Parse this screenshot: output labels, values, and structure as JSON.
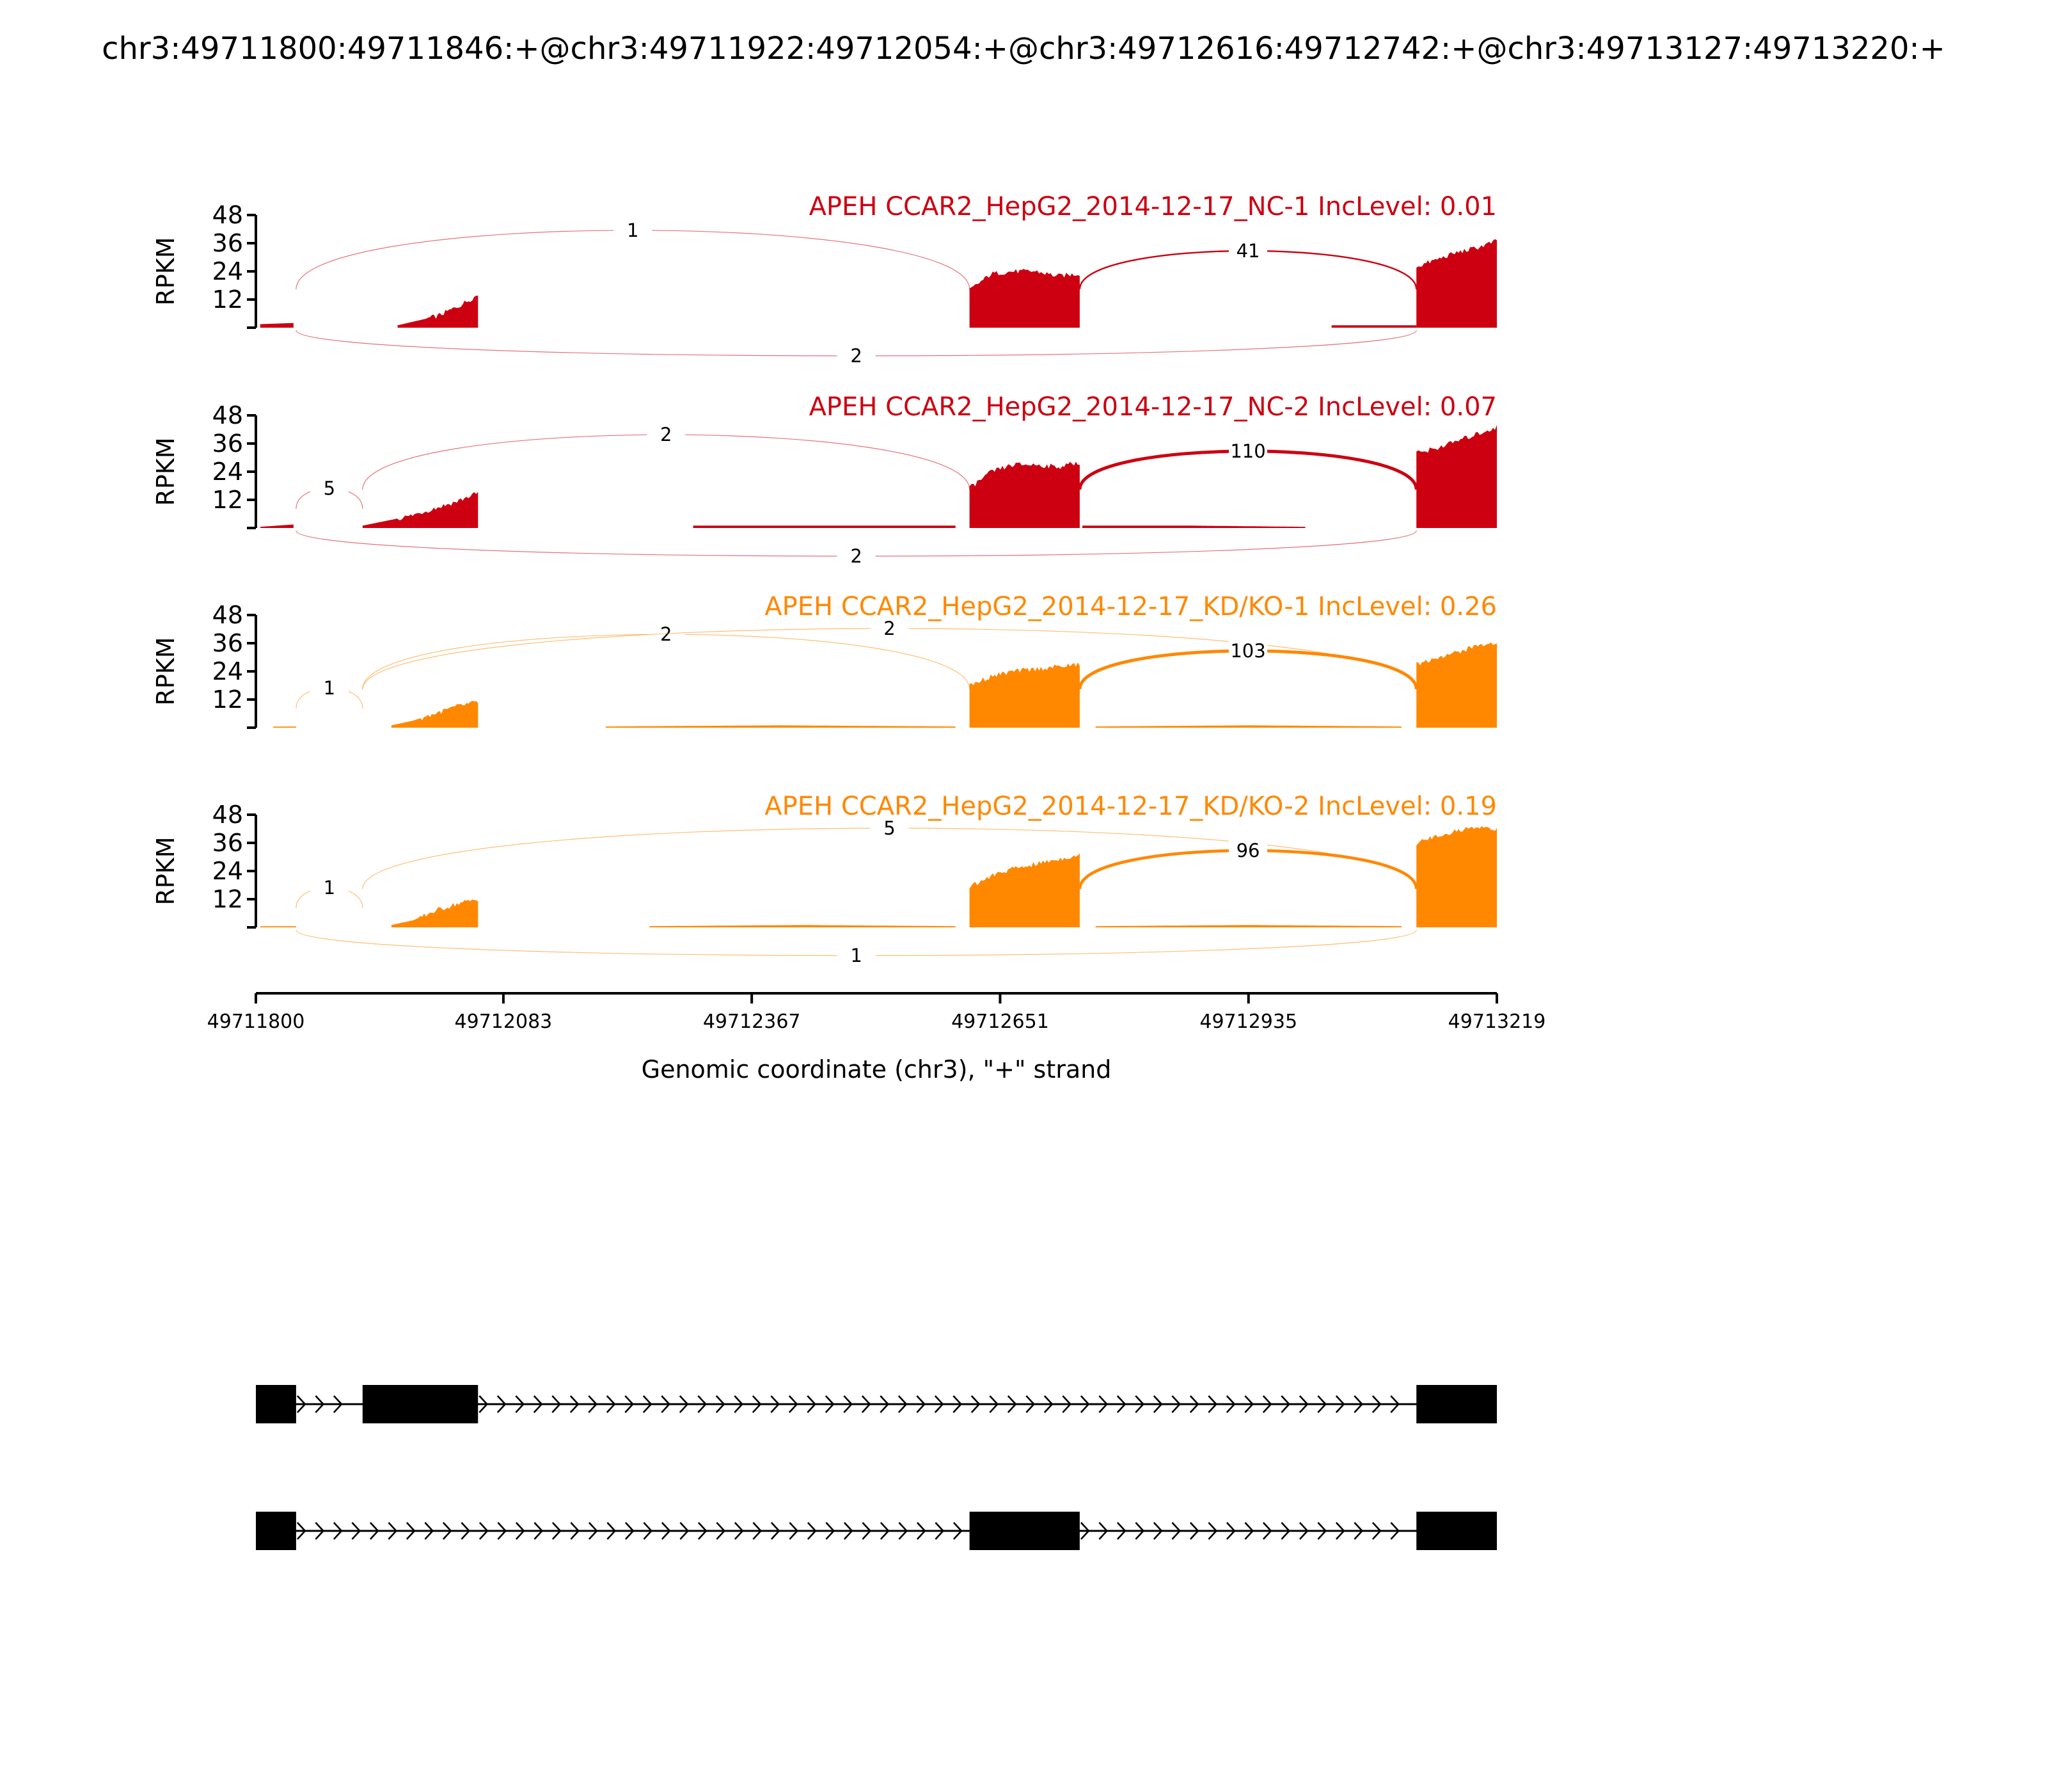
{
  "chart_data": {
    "type": "sashimi",
    "title": "chr3:49711800:49711846:+@chr3:49711922:49712054:+@chr3:49712616:49712742:+@chr3:49713127:49713220:+",
    "xlabel": "Genomic coordinate (chr3), \"+\" strand",
    "ylabel": "RPKM",
    "xlim": [
      49711800,
      49713219
    ],
    "x_ticks": [
      49711800,
      49712083,
      49712367,
      49712651,
      49712935,
      49713219
    ],
    "ylim": [
      0,
      48
    ],
    "y_ticks": [
      12,
      24,
      36,
      48
    ],
    "samples": [
      {
        "label": "APEH CCAR2_HepG2_2014-12-17_NC-1 IncLevel: 0.01",
        "color": "#cc0011",
        "coverage": [
          {
            "start": 49711805,
            "end": 49711843,
            "values": [
              1.5,
              2
            ]
          },
          {
            "start": 49711962,
            "end": 49712054,
            "values": [
              1,
              3,
              5,
              9,
              14
            ]
          },
          {
            "start": 49712616,
            "end": 49712742,
            "values": [
              16,
              23,
              24,
              24,
              22,
              23
            ]
          },
          {
            "start": 49713030,
            "end": 49713127,
            "values": [
              1,
              1
            ]
          },
          {
            "start": 49713127,
            "end": 49713219,
            "values": [
              26,
              29,
              32,
              34,
              37
            ]
          }
        ],
        "junctions": [
          {
            "from": 49711846,
            "to": 49712616,
            "count": "1",
            "side": "above"
          },
          {
            "from": 49712742,
            "to": 49713127,
            "count": "41",
            "side": "above"
          },
          {
            "from": 49711846,
            "to": 49713127,
            "count": "2",
            "side": "below"
          }
        ]
      },
      {
        "label": "APEH CCAR2_HepG2_2014-12-17_NC-2 IncLevel: 0.07",
        "color": "#cc0011",
        "coverage": [
          {
            "start": 49711805,
            "end": 49711843,
            "values": [
              0.5,
              1.5
            ]
          },
          {
            "start": 49711922,
            "end": 49712054,
            "values": [
              1,
              3,
              5,
              8,
              11,
              15
            ]
          },
          {
            "start": 49712300,
            "end": 49712600,
            "values": [
              1,
              1,
              1
            ]
          },
          {
            "start": 49712616,
            "end": 49712742,
            "values": [
              17,
              24,
              27,
              27,
              26,
              28
            ]
          },
          {
            "start": 49712745,
            "end": 49713000,
            "values": [
              1,
              1,
              0.5
            ]
          },
          {
            "start": 49713127,
            "end": 49713219,
            "values": [
              32,
              34,
              37,
              40,
              43
            ]
          }
        ],
        "junctions": [
          {
            "from": 49711846,
            "to": 49711922,
            "count": "5",
            "side": "above"
          },
          {
            "from": 49711922,
            "to": 49712616,
            "count": "2",
            "side": "above"
          },
          {
            "from": 49712742,
            "to": 49713127,
            "count": "110",
            "side": "above"
          },
          {
            "from": 49711846,
            "to": 49713127,
            "count": "2",
            "side": "below"
          }
        ]
      },
      {
        "label": "APEH CCAR2_HepG2_2014-12-17_KD/KO-1 IncLevel: 0.26",
        "color": "#ff8800",
        "coverage": [
          {
            "start": 49711820,
            "end": 49711846,
            "values": [
              0.5,
              0.5
            ]
          },
          {
            "start": 49711955,
            "end": 49712054,
            "values": [
              1,
              3,
              6,
              9,
              11
            ]
          },
          {
            "start": 49712200,
            "end": 49712600,
            "values": [
              0.5,
              1,
              0.5
            ]
          },
          {
            "start": 49712616,
            "end": 49712742,
            "values": [
              18,
              22,
              24,
              25,
              26,
              27
            ]
          },
          {
            "start": 49712760,
            "end": 49713110,
            "values": [
              0.5,
              1,
              0.5
            ]
          },
          {
            "start": 49713127,
            "end": 49713219,
            "values": [
              27,
              30,
              32,
              35,
              36
            ]
          }
        ],
        "junctions": [
          {
            "from": 49711846,
            "to": 49711922,
            "count": "1",
            "side": "above"
          },
          {
            "from": 49711922,
            "to": 49712616,
            "count": "2",
            "side": "above"
          },
          {
            "from": 49711922,
            "to": 49713127,
            "count": "2",
            "side": "above"
          },
          {
            "from": 49712742,
            "to": 49713127,
            "count": "103",
            "side": "above"
          }
        ]
      },
      {
        "label": "APEH CCAR2_HepG2_2014-12-17_KD/KO-2 IncLevel: 0.19",
        "color": "#ff8800",
        "coverage": [
          {
            "start": 49711805,
            "end": 49711846,
            "values": [
              0.5,
              0.5
            ]
          },
          {
            "start": 49711955,
            "end": 49712054,
            "values": [
              1,
              3,
              7,
              10,
              12
            ]
          },
          {
            "start": 49712250,
            "end": 49712600,
            "values": [
              0.5,
              1,
              0.5
            ]
          },
          {
            "start": 49712616,
            "end": 49712742,
            "values": [
              17,
              22,
              25,
              27,
              29,
              31
            ]
          },
          {
            "start": 49712760,
            "end": 49713110,
            "values": [
              0.5,
              1,
              0.5
            ]
          },
          {
            "start": 49713127,
            "end": 49713219,
            "values": [
              36,
              39,
              41,
              43,
              42
            ]
          }
        ],
        "junctions": [
          {
            "from": 49711846,
            "to": 49711922,
            "count": "1",
            "side": "above"
          },
          {
            "from": 49711922,
            "to": 49713127,
            "count": "5",
            "side": "above"
          },
          {
            "from": 49712742,
            "to": 49713127,
            "count": "96",
            "side": "above"
          },
          {
            "from": 49711846,
            "to": 49713127,
            "count": "1",
            "side": "below"
          }
        ]
      }
    ],
    "isoforms": [
      {
        "exons": [
          [
            49711800,
            49711846
          ],
          [
            49711922,
            49712054
          ],
          [
            49713127,
            49713219
          ]
        ]
      },
      {
        "exons": [
          [
            49711800,
            49711846
          ],
          [
            49712616,
            49712742
          ],
          [
            49713127,
            49713219
          ]
        ]
      }
    ]
  }
}
